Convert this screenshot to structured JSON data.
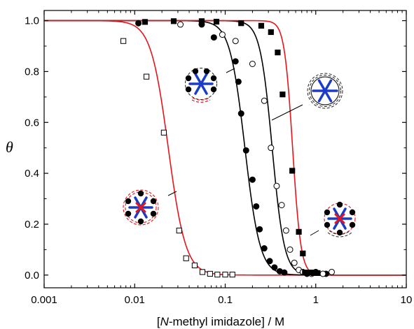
{
  "chart_data": {
    "type": "scatter",
    "title": "",
    "xlabel_parts": [
      "[",
      "N",
      "-methyl imidazole] / M"
    ],
    "ylabel": "θ",
    "xscale": "log",
    "xlim": [
      0.001,
      10
    ],
    "ylim": [
      -0.05,
      1.04
    ],
    "xticks": [
      0.001,
      0.01,
      0.1,
      1,
      10
    ],
    "xtick_labels": [
      "0.001",
      "0.01",
      "0.1",
      "1",
      "10"
    ],
    "yticks": [
      0.0,
      0.2,
      0.4,
      0.6,
      0.8,
      1.0
    ],
    "ytick_labels": [
      "0.0",
      "0.2",
      "0.4",
      "0.6",
      "0.8",
      "1.0"
    ],
    "grid": false,
    "legend": "none",
    "series": [
      {
        "marker": "open-square",
        "points": [
          [
            0.0075,
            0.92
          ],
          [
            0.0135,
            0.78
          ],
          [
            0.021,
            0.56
          ],
          [
            0.031,
            0.175
          ],
          [
            0.037,
            0.066
          ],
          [
            0.046,
            0.038
          ],
          [
            0.056,
            0.012
          ],
          [
            0.068,
            0.005
          ],
          [
            0.082,
            0.002
          ],
          [
            0.1,
            0.002
          ],
          [
            0.12,
            0.002
          ]
        ],
        "fit_curve": {
          "color": "#e8141c",
          "midpoint": 0.0235,
          "hill": 4.5
        }
      },
      {
        "marker": "filled-circle",
        "points": [
          [
            0.011,
            0.99
          ],
          [
            0.055,
            0.985
          ],
          [
            0.075,
            0.934
          ],
          [
            0.13,
            0.84
          ],
          [
            0.14,
            0.76
          ],
          [
            0.15,
            0.635
          ],
          [
            0.17,
            0.49
          ],
          [
            0.2,
            0.375
          ],
          [
            0.22,
            0.27
          ],
          [
            0.24,
            0.18
          ],
          [
            0.27,
            0.105
          ],
          [
            0.31,
            0.055
          ],
          [
            0.35,
            0.03
          ],
          [
            0.4,
            0.015
          ],
          [
            0.45,
            0.01
          ],
          [
            0.8,
            0.005
          ],
          [
            1.0,
            0.012
          ],
          [
            1.3,
            0.005
          ]
        ],
        "fit_curve": {
          "color": "#000000",
          "midpoint": 0.165,
          "hill": 5.2
        }
      },
      {
        "marker": "open-circle",
        "points": [
          [
            0.032,
            0.985
          ],
          [
            0.093,
            0.945
          ],
          [
            0.13,
            0.92
          ],
          [
            0.2,
            0.83
          ],
          [
            0.27,
            0.685
          ],
          [
            0.32,
            0.5
          ],
          [
            0.37,
            0.35
          ],
          [
            0.42,
            0.275
          ],
          [
            0.47,
            0.175
          ],
          [
            0.52,
            0.1
          ],
          [
            0.58,
            0.048
          ],
          [
            0.65,
            0.02
          ],
          [
            0.72,
            0.012
          ],
          [
            0.9,
            0.005
          ],
          [
            1.2,
            0.005
          ],
          [
            1.5,
            0.012
          ]
        ],
        "fit_curve": {
          "color": "#000000",
          "midpoint": 0.33,
          "hill": 6.5
        }
      },
      {
        "marker": "filled-square",
        "points": [
          [
            0.013,
            0.995
          ],
          [
            0.027,
            0.998
          ],
          [
            0.055,
            0.998
          ],
          [
            0.08,
            0.996
          ],
          [
            0.15,
            0.99
          ],
          [
            0.25,
            0.98
          ],
          [
            0.32,
            0.955
          ],
          [
            0.38,
            0.875
          ],
          [
            0.43,
            0.71
          ],
          [
            0.55,
            0.41
          ],
          [
            0.65,
            0.17
          ],
          [
            0.72,
            0.085
          ],
          [
            0.76,
            0.01
          ],
          [
            0.88,
            0.01
          ],
          [
            0.95,
            0.008
          ],
          [
            1.05,
            0.008
          ]
        ],
        "fit_curve": {
          "color": "#e8141c",
          "midpoint": 0.555,
          "hill": 9.5
        }
      }
    ]
  }
}
